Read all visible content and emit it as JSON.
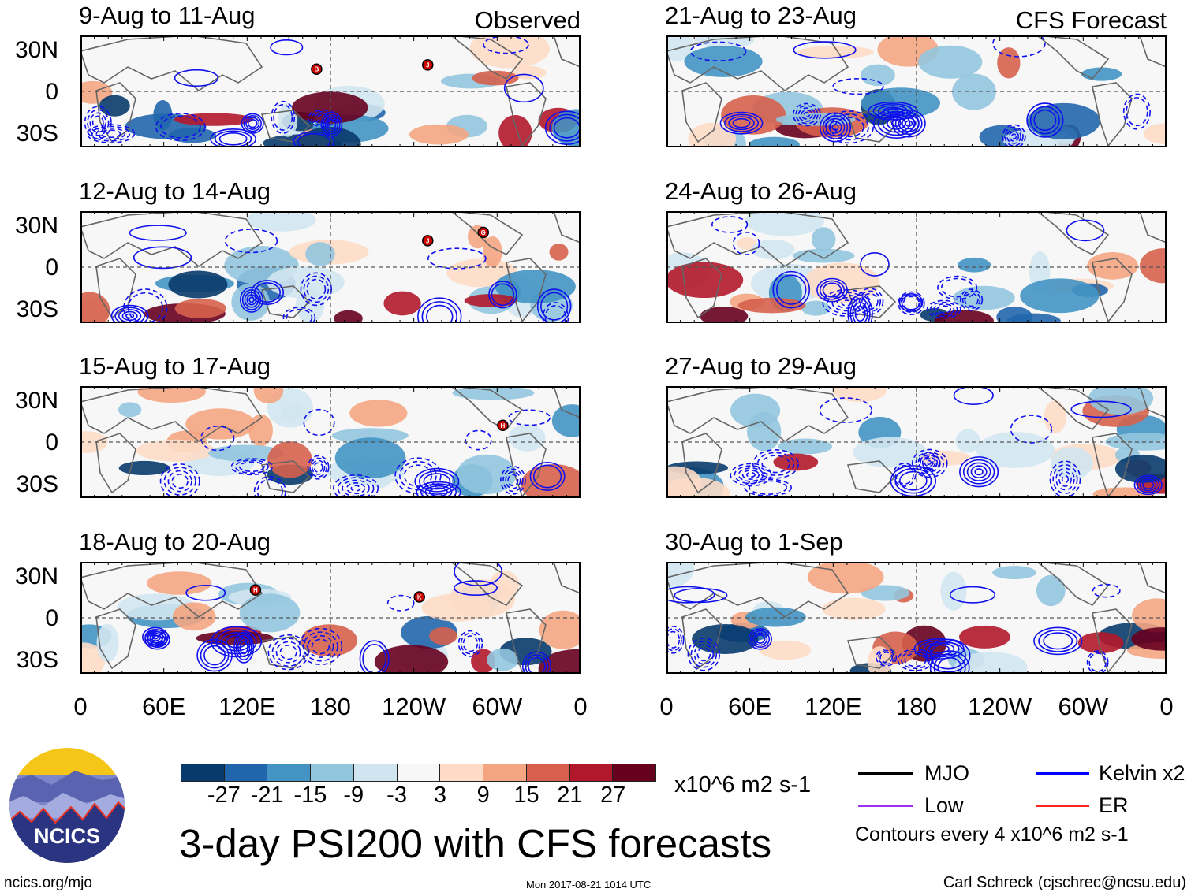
{
  "observed_label": "Observed",
  "forecast_label": "CFS Forecast",
  "panels": [
    {
      "title": "9-Aug to 11-Aug",
      "column": "observed",
      "storms": [
        {
          "id": "B",
          "lon": 170,
          "lat": 16
        },
        {
          "id": "J",
          "lon": 250,
          "lat": 19
        }
      ]
    },
    {
      "title": "12-Aug to 14-Aug",
      "column": "observed",
      "storms": [
        {
          "id": "J",
          "lon": 250,
          "lat": 19
        },
        {
          "id": "G",
          "lon": 290,
          "lat": 25
        }
      ]
    },
    {
      "title": "15-Aug to 17-Aug",
      "column": "observed",
      "storms": [
        {
          "id": "H",
          "lon": 304,
          "lat": 12
        }
      ]
    },
    {
      "title": "18-Aug to 20-Aug",
      "column": "observed",
      "storms": [
        {
          "id": "H",
          "lon": 126,
          "lat": 20
        },
        {
          "id": "K",
          "lon": 244,
          "lat": 15
        }
      ]
    },
    {
      "title": "21-Aug to 23-Aug",
      "column": "forecast",
      "storms": []
    },
    {
      "title": "24-Aug to 26-Aug",
      "column": "forecast",
      "storms": []
    },
    {
      "title": "27-Aug to 29-Aug",
      "column": "forecast",
      "storms": []
    },
    {
      "title": "30-Aug to 1-Sep",
      "column": "forecast",
      "storms": []
    }
  ],
  "y_ticks": [
    "30N",
    "0",
    "30S"
  ],
  "x_ticks": [
    "0",
    "60E",
    "120E",
    "180",
    "120W",
    "60W",
    "0"
  ],
  "colorbar": {
    "colors": [
      "#083a6b",
      "#2166ac",
      "#4393c3",
      "#92c5de",
      "#d1e5f0",
      "#f7f7f7",
      "#fddbc7",
      "#f4a582",
      "#d6604d",
      "#b2182b",
      "#67001f"
    ],
    "labels": [
      "-27",
      "-21",
      "-15",
      "-9",
      "-3",
      "3",
      "9",
      "15",
      "21",
      "27"
    ],
    "units": "x10^6 m2 s-1"
  },
  "title": "3-day PSI200 with CFS forecasts",
  "legend": {
    "items": [
      {
        "label": "MJO",
        "color": "#000000"
      },
      {
        "label": "Kelvin x2",
        "color": "#0000ff"
      },
      {
        "label": "Low",
        "color": "#9933ee"
      },
      {
        "label": "ER",
        "color": "#ff2222"
      }
    ],
    "note": "Contours every 4 x10^6 m2 s-1"
  },
  "logo_text": "NCICS",
  "url": "ncics.org/mjo",
  "timestamp": "Mon 2017-08-21 1014 UTC",
  "credit": "Carl Schreck (cjschrec@ncsu.edu)"
}
